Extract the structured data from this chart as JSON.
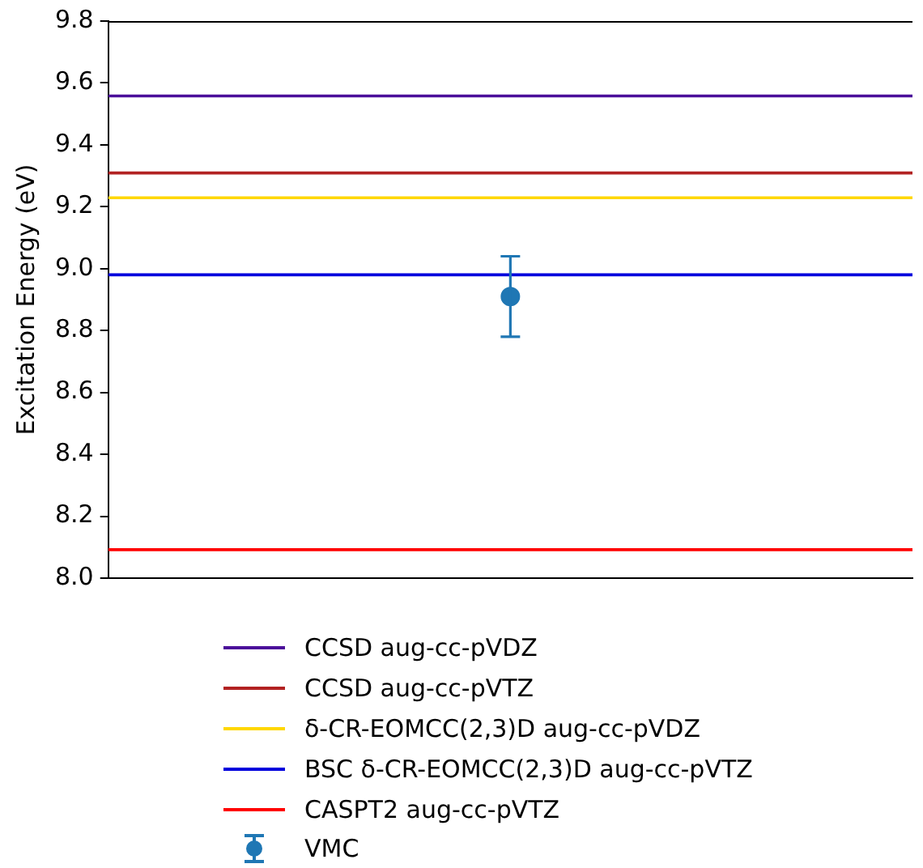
{
  "chart_data": {
    "type": "scatter",
    "ylabel": "Excitation Energy (eV)",
    "categories": [
      null
    ],
    "ylim": [
      8.0,
      9.8
    ],
    "yticks": [
      {
        "value": 8.0,
        "label": "8.0"
      },
      {
        "value": 8.2,
        "label": "8.2"
      },
      {
        "value": 8.4,
        "label": "8.4"
      },
      {
        "value": 8.6,
        "label": "8.6"
      },
      {
        "value": 8.8,
        "label": "8.8"
      },
      {
        "value": 9.0,
        "label": "9.0"
      },
      {
        "value": 9.2,
        "label": "9.2"
      },
      {
        "value": 9.4,
        "label": "9.4"
      },
      {
        "value": 9.6,
        "label": "9.6"
      },
      {
        "value": 9.8,
        "label": "9.8"
      }
    ],
    "grid": false,
    "legend": "bottom",
    "tick_labels": "y",
    "marker": "circle",
    "ref_lines": [
      {
        "axis": "y",
        "value": 9.558,
        "label": "CCSD aug-cc-pVDZ",
        "color": "#4b0f9a"
      },
      {
        "axis": "y",
        "value": 9.309,
        "label": "CCSD aug-cc-pVTZ",
        "color": "#b22222"
      },
      {
        "axis": "y",
        "value": 9.229,
        "label": "δ-CR-EOMCC(2,3)D aug-cc-pVDZ",
        "color": "#ffd700"
      },
      {
        "axis": "y",
        "value": 8.98,
        "label": "BSC δ-CR-EOMCC(2,3)D aug-cc-pVTZ",
        "color": "#0000dd"
      },
      {
        "axis": "y",
        "value": 8.092,
        "label": "CASPT2 aug-cc-pVTZ",
        "color": "#ff0000"
      }
    ],
    "series": [
      {
        "name": "VMC",
        "color": "#1f77b4",
        "values": [
          8.91
        ],
        "errors": [
          0.13
        ]
      }
    ]
  }
}
